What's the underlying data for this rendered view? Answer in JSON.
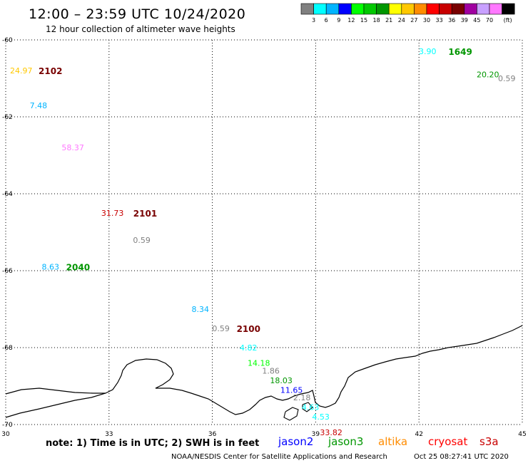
{
  "header": {
    "title": "12:00 – 23:59 UTC 10/24/2020",
    "subtitle": "12 hour collection of altimeter wave heights"
  },
  "colorbar": {
    "colors": [
      "#808080",
      "#00ffff",
      "#00b4ff",
      "#0000ff",
      "#00ff00",
      "#00c800",
      "#009600",
      "#ffff00",
      "#ffc800",
      "#ff8c00",
      "#ff0000",
      "#c80000",
      "#780000",
      "#a000a0",
      "#c8a0ff",
      "#ff78ff",
      "#000000"
    ],
    "labels": [
      "3",
      "6",
      "9",
      "12",
      "15",
      "18",
      "21",
      "24",
      "27",
      "30",
      "33",
      "36",
      "39",
      "45",
      "70"
    ],
    "unit": "(ft)"
  },
  "chart_data": {
    "type": "scatter",
    "xlim": [
      30,
      45
    ],
    "ylim": [
      -70,
      -60
    ],
    "x_ticks": [
      "30",
      "33",
      "36",
      "39",
      "42",
      "45"
    ],
    "y_ticks": [
      "-60",
      "-62",
      "-64",
      "-66",
      "-68",
      "-70"
    ],
    "grid": "dotted",
    "observations": [
      {
        "text": "24.97",
        "x": 30.45,
        "y": -60.8,
        "color": "#ffc800"
      },
      {
        "text": "7.48",
        "x": 30.95,
        "y": -61.7,
        "color": "#00b4ff"
      },
      {
        "text": "58.37",
        "x": 31.95,
        "y": -62.8,
        "color": "#ff78ff"
      },
      {
        "text": "31.73",
        "x": 33.1,
        "y": -64.5,
        "color": "#c80000"
      },
      {
        "text": "0.59",
        "x": 33.95,
        "y": -65.2,
        "color": "#808080"
      },
      {
        "text": "8.63",
        "x": 31.3,
        "y": -65.9,
        "color": "#00b4ff"
      },
      {
        "text": "8.34",
        "x": 35.65,
        "y": -67.0,
        "color": "#00b4ff"
      },
      {
        "text": "0.59",
        "x": 36.25,
        "y": -67.5,
        "color": "#808080"
      },
      {
        "text": "4.82",
        "x": 37.05,
        "y": -68.0,
        "color": "#00ffff"
      },
      {
        "text": "14.18",
        "x": 37.35,
        "y": -68.4,
        "color": "#00ff00"
      },
      {
        "text": "1.86",
        "x": 37.7,
        "y": -68.6,
        "color": "#808080"
      },
      {
        "text": "18.03",
        "x": 38.0,
        "y": -68.85,
        "color": "#009600"
      },
      {
        "text": "11.65",
        "x": 38.3,
        "y": -69.1,
        "color": "#0000ff"
      },
      {
        "text": "2.18",
        "x": 38.6,
        "y": -69.3,
        "color": "#808080"
      },
      {
        "text": "4.63",
        "x": 38.85,
        "y": -69.55,
        "color": "#00ffff"
      },
      {
        "text": "4.53",
        "x": 39.15,
        "y": -69.8,
        "color": "#00ffff"
      },
      {
        "text": "33.82",
        "x": 39.45,
        "y": -70.2,
        "color": "#c80000"
      },
      {
        "text": "3.90",
        "x": 42.25,
        "y": -60.3,
        "color": "#00ffff"
      },
      {
        "text": "20.20",
        "x": 44.0,
        "y": -60.9,
        "color": "#009600"
      },
      {
        "text": "0.59",
        "x": 44.55,
        "y": -61.0,
        "color": "#808080"
      }
    ],
    "time_stamps": [
      {
        "text": "2102",
        "x": 31.3,
        "y": -60.8,
        "color": "#780000"
      },
      {
        "text": "2101",
        "x": 34.05,
        "y": -64.5,
        "color": "#780000"
      },
      {
        "text": "2040",
        "x": 32.1,
        "y": -65.9,
        "color": "#009600"
      },
      {
        "text": "2100",
        "x": 37.05,
        "y": -67.5,
        "color": "#780000"
      },
      {
        "text": "1649",
        "x": 43.2,
        "y": -60.3,
        "color": "#009600"
      }
    ]
  },
  "note": "note: 1) Time is in UTC; 2) SWH is in feet",
  "satellites": [
    {
      "name": "jason2",
      "color": "#0000ff"
    },
    {
      "name": "jason3",
      "color": "#009600"
    },
    {
      "name": "altika",
      "color": "#ff8c00"
    },
    {
      "name": "cryosat",
      "color": "#ff0000"
    },
    {
      "name": "s3a",
      "color": "#c80000"
    }
  ],
  "footer": {
    "center": "NOAA/NESDIS Center for Satellite Applications and Research",
    "timestamp": "Oct 25 08:27:41 UTC 2020"
  }
}
